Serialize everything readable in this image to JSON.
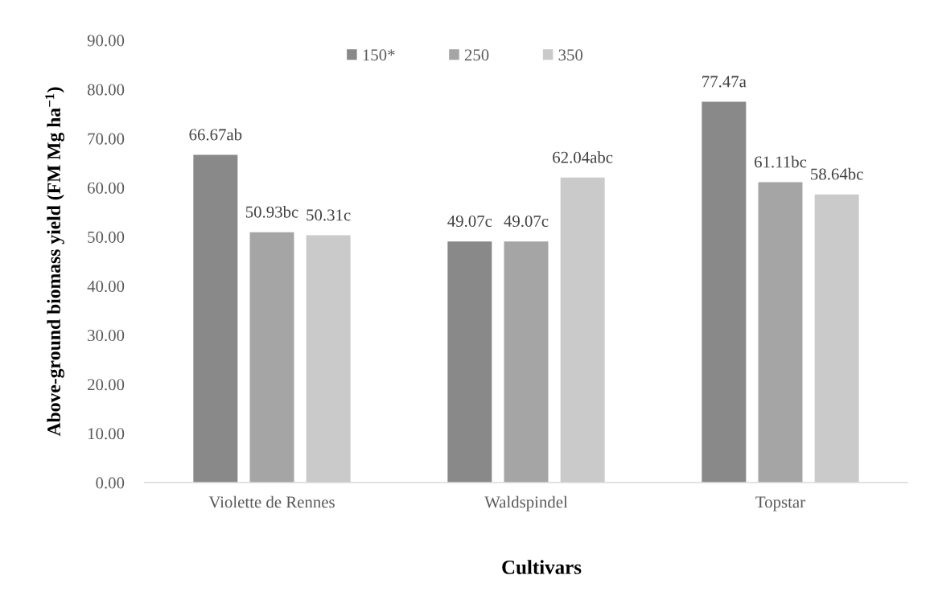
{
  "chart_data": {
    "type": "bar",
    "categories": [
      "Violette de Rennes",
      "Waldspindel",
      "Topstar"
    ],
    "series": [
      {
        "name": "150*",
        "color": "#898989",
        "values": [
          66.67,
          49.07,
          77.47
        ],
        "value_labels": [
          "66.67ab",
          "49.07c",
          "77.47a"
        ]
      },
      {
        "name": "250",
        "color": "#a5a5a5",
        "values": [
          50.93,
          49.07,
          61.11
        ],
        "value_labels": [
          "50.93bc",
          "49.07c",
          "61.11bc"
        ]
      },
      {
        "name": "350",
        "color": "#cacaca",
        "values": [
          50.31,
          62.04,
          58.64
        ],
        "value_labels": [
          "50.31c",
          "62.04abc",
          "58.64bc"
        ]
      }
    ],
    "xlabel": "Cultivars",
    "ylabel": "Above-ground biomass yield (FM Mg ha$^{−1}$)",
    "ylim": [
      0,
      90
    ],
    "yticks": [
      {
        "value": 0,
        "label": "0.00"
      },
      {
        "value": 10,
        "label": "10.00"
      },
      {
        "value": 20,
        "label": "20.00"
      },
      {
        "value": 30,
        "label": "30.00"
      },
      {
        "value": 40,
        "label": "40.00"
      },
      {
        "value": 50,
        "label": "50.00"
      },
      {
        "value": 60,
        "label": "60.00"
      },
      {
        "value": 70,
        "label": "70.00"
      },
      {
        "value": 80,
        "label": "80.00"
      },
      {
        "value": 90,
        "label": "90.00"
      }
    ],
    "grid": false,
    "legend": "top"
  }
}
